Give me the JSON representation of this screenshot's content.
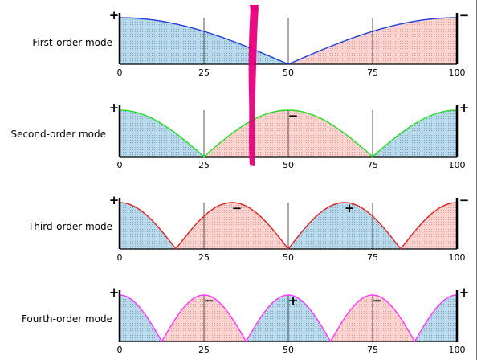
{
  "colors": {
    "blue_region": "#a9cde3",
    "red_region": "#f6c9c4",
    "mode1_line": "#1f3fe0",
    "mode2_line": "#1fe01f",
    "mode3_line": "#e01f1f",
    "mode4_line": "#ff33ff",
    "gridline": "#2a2a2a",
    "wall": "#000000",
    "marker": "#e8007e"
  },
  "x_ticks": [
    "0",
    "25",
    "50",
    "75",
    "100"
  ],
  "modes": [
    {
      "label": "First-order mode",
      "order": 1,
      "line_color_key": "mode1_line",
      "signs": [
        {
          "text": "+",
          "at_x": 0,
          "position": "left-wall"
        },
        {
          "text": "−",
          "at_x": 100,
          "position": "right-wall"
        }
      ]
    },
    {
      "label": "Second-order mode",
      "order": 2,
      "line_color_key": "mode2_line",
      "signs": [
        {
          "text": "+",
          "at_x": 0,
          "position": "left-wall"
        },
        {
          "text": "−",
          "at_x": 50,
          "position": "peak"
        },
        {
          "text": "+",
          "at_x": 100,
          "position": "right-wall"
        }
      ]
    },
    {
      "label": "Third-order mode",
      "order": 3,
      "line_color_key": "mode3_line",
      "signs": [
        {
          "text": "+",
          "at_x": 0,
          "position": "left-wall"
        },
        {
          "text": "−",
          "at_x": 33.3,
          "position": "peak"
        },
        {
          "text": "+",
          "at_x": 66.7,
          "position": "peak"
        },
        {
          "text": "−",
          "at_x": 100,
          "position": "right-wall"
        }
      ]
    },
    {
      "label": "Fourth-order mode",
      "order": 4,
      "line_color_key": "mode4_line",
      "signs": [
        {
          "text": "+",
          "at_x": 0,
          "position": "left-wall"
        },
        {
          "text": "−",
          "at_x": 25,
          "position": "peak"
        },
        {
          "text": "+",
          "at_x": 50,
          "position": "peak"
        },
        {
          "text": "−",
          "at_x": 75,
          "position": "peak"
        },
        {
          "text": "+",
          "at_x": 100,
          "position": "right-wall"
        }
      ]
    }
  ]
}
